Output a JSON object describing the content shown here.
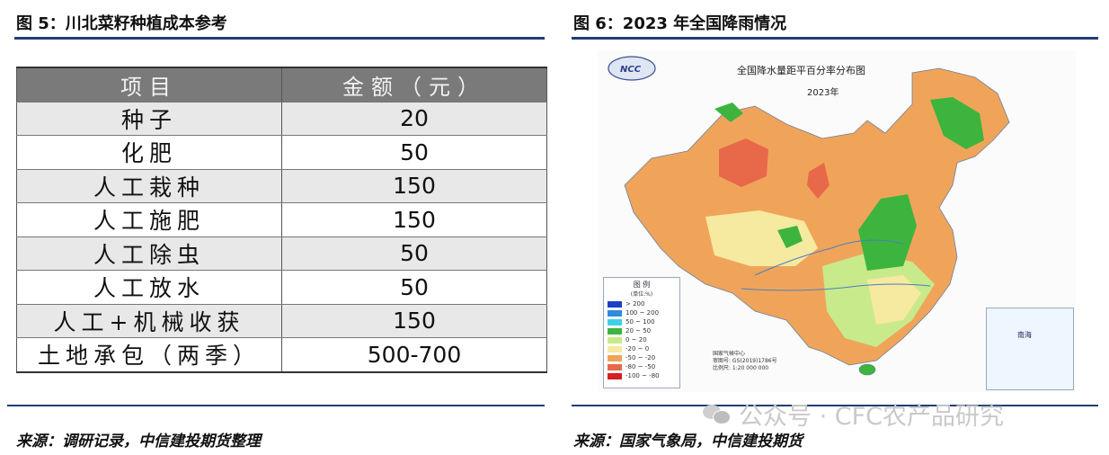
{
  "left_figure": {
    "title": "图 5：川北菜籽种植成本参考",
    "table": {
      "headers": [
        "项目",
        "金额（元）"
      ],
      "rows": [
        {
          "item": "种子",
          "amount": "20"
        },
        {
          "item": "化肥",
          "amount": "50"
        },
        {
          "item": "人工栽种",
          "amount": "150"
        },
        {
          "item": "人工施肥",
          "amount": "150"
        },
        {
          "item": "人工除虫",
          "amount": "50"
        },
        {
          "item": "人工放水",
          "amount": "50"
        },
        {
          "item": "人工+机械收获",
          "amount": "150"
        },
        {
          "item": "土地承包（两季）",
          "amount": "500-700"
        }
      ]
    },
    "source": "来源：调研记录，中信建投期货整理"
  },
  "right_figure": {
    "title": "图 6：2023 年全国降雨情况",
    "map": {
      "title": "全国降水量距平百分率分布图",
      "year": "2023年",
      "legend_title": "图 例",
      "legend_unit": "(单位:%)",
      "legend": [
        {
          "label": "> 200",
          "color": "#1c3fc8"
        },
        {
          "label": "100 ~ 200",
          "color": "#2f8be0"
        },
        {
          "label": "50 ~ 100",
          "color": "#3fd0e8"
        },
        {
          "label": "20 ~ 50",
          "color": "#3db43d"
        },
        {
          "label": "0 ~ 20",
          "color": "#c8ea8a"
        },
        {
          "label": "-20 ~ 0",
          "color": "#f6e9a0"
        },
        {
          "label": "-50 ~ -20",
          "color": "#f0a45a"
        },
        {
          "label": "-80 ~ -50",
          "color": "#e8684a"
        },
        {
          "label": "-100 ~ -80",
          "color": "#d42020"
        }
      ],
      "note_line1": "国家气候中心",
      "note_line2": "审图号: GS(2019)1786号",
      "note_line3": "比例尺: 1:20 000 000",
      "south_sea_label": "南海",
      "logo_text": "NCC"
    },
    "source": "来源：国家气象局，中信建投期货"
  },
  "watermark": "公众号 · CFC农产品研究"
}
